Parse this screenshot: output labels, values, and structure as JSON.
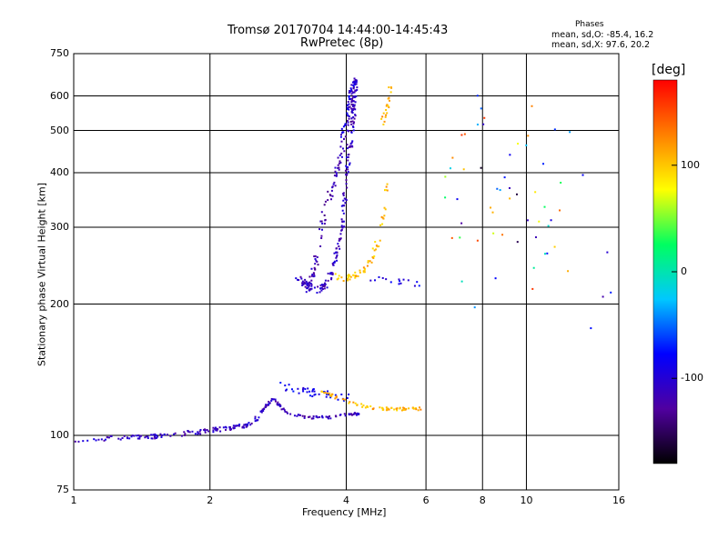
{
  "header": {
    "title_line1": "Tromsø 20170704 14:44:00-14:45:43",
    "title_line2": "RwPretec (8p)"
  },
  "phase_stats": {
    "heading": "Phases",
    "o_mode": "mean, sd,O: -85.4, 16.2",
    "x_mode": "mean, sd,X:  97.6, 20.2"
  },
  "colorbar": {
    "unit_label": "[deg]",
    "ticks": [
      {
        "value": 100,
        "label": "100"
      },
      {
        "value": 0,
        "label": "0"
      },
      {
        "value": -100,
        "label": "-100"
      }
    ],
    "range": [
      -180,
      180
    ],
    "colors": [
      "#000000",
      "#5000a0",
      "#0000ff",
      "#00c8ff",
      "#00ff60",
      "#ffff00",
      "#ff8000",
      "#ff0000"
    ]
  },
  "chart_data": {
    "type": "scatter",
    "title": "Tromsø 20170704 14:44:00-14:45:43",
    "subtitle": "RwPretec (8p)",
    "xlabel": "Frequency [MHz]",
    "ylabel": "Stationary phase Virtual Height [km]",
    "x_scale": "log",
    "y_scale": "log",
    "xlim": [
      1,
      16
    ],
    "ylim": [
      75,
      750
    ],
    "x_ticks": [
      {
        "value": 1,
        "label": "1"
      },
      {
        "value": 2,
        "label": "2"
      },
      {
        "value": 4,
        "label": "4"
      },
      {
        "value": 6,
        "label": "6"
      },
      {
        "value": 8,
        "label": "8"
      },
      {
        "value": 10,
        "label": "10"
      },
      {
        "value": 16,
        "label": "16"
      }
    ],
    "y_ticks": [
      {
        "value": 75,
        "label": "75"
      },
      {
        "value": 100,
        "label": "100"
      },
      {
        "value": 200,
        "label": "200"
      },
      {
        "value": 300,
        "label": "300"
      },
      {
        "value": 400,
        "label": "400"
      },
      {
        "value": 500,
        "label": "500"
      },
      {
        "value": 600,
        "label": "600"
      },
      {
        "value": 750,
        "label": "750"
      }
    ],
    "grid": true,
    "color_by": "phase [deg]",
    "traces": [
      {
        "x": [
          1.0,
          1.15,
          1.3,
          1.45,
          1.6,
          1.75,
          1.9,
          2.05,
          2.2,
          2.35,
          2.45,
          2.55,
          2.65
        ],
        "y": [
          97,
          98,
          99,
          99,
          100,
          101,
          102,
          103,
          104,
          105,
          106,
          110,
          116
        ],
        "phase": -110,
        "spread": 0.012,
        "n": 150
      },
      {
        "x": [
          2.65,
          2.75,
          2.85,
          2.95,
          3.1,
          3.3,
          3.5,
          3.7,
          3.9,
          4.1,
          4.3
        ],
        "y": [
          116,
          122,
          117,
          113,
          111,
          110,
          110,
          110,
          111,
          112,
          112
        ],
        "phase": -112,
        "spread": 0.007,
        "n": 90
      },
      {
        "x": [
          2.85,
          3.05,
          3.25,
          3.45,
          3.65,
          3.85,
          4.05
        ],
        "y": [
          130,
          128,
          126,
          125,
          124,
          123,
          122
        ],
        "phase": -85,
        "spread": 0.02,
        "n": 40
      },
      {
        "x": [
          3.45,
          3.7,
          3.95,
          4.2,
          4.5,
          4.8,
          5.1,
          5.5,
          5.9
        ],
        "y": [
          128,
          124,
          120,
          118,
          116,
          115,
          115,
          115,
          115
        ],
        "phase": 110,
        "spread": 0.008,
        "n": 70
      },
      {
        "x": [
          3.1,
          3.2,
          3.3,
          3.45,
          3.6,
          3.7,
          3.8,
          3.9,
          3.95,
          4.0,
          4.05,
          4.1,
          4.15,
          4.2
        ],
        "y": [
          230,
          225,
          220,
          215,
          220,
          235,
          260,
          290,
          330,
          380,
          430,
          480,
          540,
          620
        ],
        "phase": -110,
        "spread": 0.02,
        "n": 170
      },
      {
        "x": [
          3.3,
          3.4,
          3.5,
          3.6,
          3.7,
          3.8,
          3.9,
          4.0,
          4.1,
          4.15,
          4.2
        ],
        "y": [
          210,
          240,
          290,
          330,
          360,
          400,
          440,
          490,
          550,
          600,
          640
        ],
        "phase": -118,
        "spread": 0.025,
        "n": 120
      },
      {
        "x": [
          3.9,
          4.0,
          4.05,
          4.1,
          4.15,
          4.2
        ],
        "y": [
          480,
          540,
          580,
          620,
          640,
          650
        ],
        "phase": -100,
        "spread": 0.015,
        "n": 50
      },
      {
        "x": [
          3.8,
          4.0,
          4.2,
          4.4,
          4.6,
          4.75,
          4.85,
          4.95
        ],
        "y": [
          230,
          230,
          232,
          240,
          260,
          290,
          330,
          380
        ],
        "phase": 105,
        "spread": 0.02,
        "n": 60
      },
      {
        "x": [
          4.8,
          4.9,
          5.0,
          5.0
        ],
        "y": [
          520,
          560,
          600,
          630
        ],
        "phase": 110,
        "spread": 0.015,
        "n": 20
      },
      {
        "x": [
          4.4,
          4.8,
          5.2,
          5.6,
          6.0
        ],
        "y": [
          230,
          228,
          225,
          223,
          220
        ],
        "phase": -90,
        "spread": 0.015,
        "n": 15
      },
      {
        "x": [
          6.5,
          7.5,
          8.0,
          9.0,
          9.5,
          9.7,
          10.0,
          12.0,
          12.2,
          15.0
        ],
        "y": [
          390,
          380,
          240,
          560,
          420,
          230,
          400,
          370,
          290,
          180
        ],
        "phase": 0,
        "spread": 0.3,
        "n": 60
      }
    ]
  }
}
